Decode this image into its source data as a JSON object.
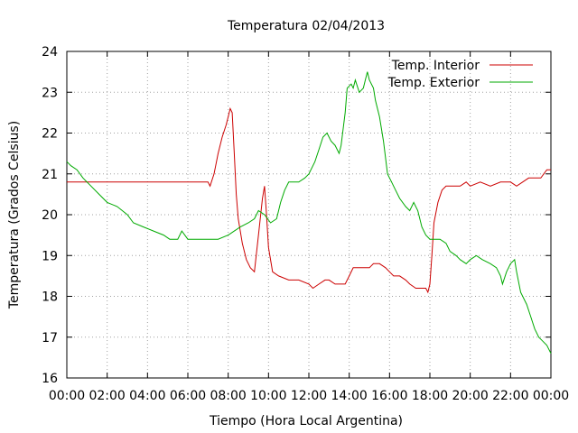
{
  "chart_data": {
    "type": "line",
    "title": "Temperatura 02/04/2013",
    "xlabel": "Tiempo (Hora Local Argentina)",
    "ylabel": "Temperatura (Grados Celsius)",
    "xlim": [
      0,
      24
    ],
    "ylim": [
      16,
      24
    ],
    "x_ticks": [
      "00:00",
      "02:00",
      "04:00",
      "06:00",
      "08:00",
      "10:00",
      "12:00",
      "14:00",
      "16:00",
      "18:00",
      "20:00",
      "22:00",
      "00:00"
    ],
    "y_ticks": [
      "16",
      "17",
      "18",
      "19",
      "20",
      "21",
      "22",
      "23",
      "24"
    ],
    "grid": true,
    "legend_position": "top-right",
    "series": [
      {
        "name": "Temp. Interior",
        "color": "#cc0000",
        "points": [
          [
            0,
            20.8
          ],
          [
            7.0,
            20.8
          ],
          [
            7.1,
            20.7
          ],
          [
            7.3,
            21.0
          ],
          [
            7.5,
            21.5
          ],
          [
            7.7,
            21.9
          ],
          [
            7.9,
            22.2
          ],
          [
            8.0,
            22.4
          ],
          [
            8.1,
            22.6
          ],
          [
            8.2,
            22.5
          ],
          [
            8.3,
            21.5
          ],
          [
            8.4,
            20.5
          ],
          [
            8.5,
            19.9
          ],
          [
            8.7,
            19.3
          ],
          [
            8.9,
            18.9
          ],
          [
            9.1,
            18.7
          ],
          [
            9.3,
            18.6
          ],
          [
            9.5,
            19.5
          ],
          [
            9.7,
            20.4
          ],
          [
            9.8,
            20.7
          ],
          [
            9.9,
            20.0
          ],
          [
            10.0,
            19.2
          ],
          [
            10.2,
            18.6
          ],
          [
            10.5,
            18.5
          ],
          [
            11.0,
            18.4
          ],
          [
            11.5,
            18.4
          ],
          [
            12.0,
            18.3
          ],
          [
            12.2,
            18.2
          ],
          [
            12.5,
            18.3
          ],
          [
            12.8,
            18.4
          ],
          [
            13.0,
            18.4
          ],
          [
            13.3,
            18.3
          ],
          [
            13.8,
            18.3
          ],
          [
            14.0,
            18.5
          ],
          [
            14.2,
            18.7
          ],
          [
            14.5,
            18.7
          ],
          [
            15.0,
            18.7
          ],
          [
            15.2,
            18.8
          ],
          [
            15.5,
            18.8
          ],
          [
            15.8,
            18.7
          ],
          [
            16.0,
            18.6
          ],
          [
            16.2,
            18.5
          ],
          [
            16.5,
            18.5
          ],
          [
            16.8,
            18.4
          ],
          [
            17.0,
            18.3
          ],
          [
            17.3,
            18.2
          ],
          [
            17.8,
            18.2
          ],
          [
            17.9,
            18.1
          ],
          [
            18.0,
            18.3
          ],
          [
            18.1,
            19.0
          ],
          [
            18.2,
            19.8
          ],
          [
            18.4,
            20.3
          ],
          [
            18.6,
            20.6
          ],
          [
            18.8,
            20.7
          ],
          [
            19.0,
            20.7
          ],
          [
            19.5,
            20.7
          ],
          [
            19.8,
            20.8
          ],
          [
            20.0,
            20.7
          ],
          [
            20.5,
            20.8
          ],
          [
            21.0,
            20.7
          ],
          [
            21.5,
            20.8
          ],
          [
            22.0,
            20.8
          ],
          [
            22.3,
            20.7
          ],
          [
            22.6,
            20.8
          ],
          [
            22.9,
            20.9
          ],
          [
            23.5,
            20.9
          ],
          [
            23.8,
            21.1
          ],
          [
            24.0,
            21.1
          ]
        ]
      },
      {
        "name": "Temp. Exterior",
        "color": "#00aa00",
        "points": [
          [
            0,
            21.3
          ],
          [
            0.2,
            21.2
          ],
          [
            0.5,
            21.1
          ],
          [
            0.8,
            20.9
          ],
          [
            1.2,
            20.7
          ],
          [
            1.6,
            20.5
          ],
          [
            2.0,
            20.3
          ],
          [
            2.5,
            20.2
          ],
          [
            3.0,
            20.0
          ],
          [
            3.3,
            19.8
          ],
          [
            3.8,
            19.7
          ],
          [
            4.3,
            19.6
          ],
          [
            4.8,
            19.5
          ],
          [
            5.1,
            19.4
          ],
          [
            5.5,
            19.4
          ],
          [
            5.7,
            19.6
          ],
          [
            6.0,
            19.4
          ],
          [
            6.5,
            19.4
          ],
          [
            7.0,
            19.4
          ],
          [
            7.5,
            19.4
          ],
          [
            8.0,
            19.5
          ],
          [
            8.3,
            19.6
          ],
          [
            8.6,
            19.7
          ],
          [
            9.0,
            19.8
          ],
          [
            9.3,
            19.9
          ],
          [
            9.5,
            20.1
          ],
          [
            9.8,
            20.0
          ],
          [
            10.1,
            19.8
          ],
          [
            10.4,
            19.9
          ],
          [
            10.6,
            20.3
          ],
          [
            10.8,
            20.6
          ],
          [
            11.0,
            20.8
          ],
          [
            11.5,
            20.8
          ],
          [
            11.8,
            20.9
          ],
          [
            12.0,
            21.0
          ],
          [
            12.3,
            21.3
          ],
          [
            12.5,
            21.6
          ],
          [
            12.7,
            21.9
          ],
          [
            12.9,
            22.0
          ],
          [
            13.1,
            21.8
          ],
          [
            13.3,
            21.7
          ],
          [
            13.5,
            21.5
          ],
          [
            13.6,
            21.7
          ],
          [
            13.8,
            22.5
          ],
          [
            13.9,
            23.1
          ],
          [
            14.1,
            23.2
          ],
          [
            14.2,
            23.1
          ],
          [
            14.3,
            23.3
          ],
          [
            14.5,
            23.0
          ],
          [
            14.7,
            23.1
          ],
          [
            14.8,
            23.3
          ],
          [
            14.9,
            23.5
          ],
          [
            15.0,
            23.3
          ],
          [
            15.2,
            23.1
          ],
          [
            15.3,
            22.8
          ],
          [
            15.5,
            22.4
          ],
          [
            15.7,
            21.8
          ],
          [
            15.9,
            21.0
          ],
          [
            16.1,
            20.8
          ],
          [
            16.3,
            20.6
          ],
          [
            16.5,
            20.4
          ],
          [
            16.8,
            20.2
          ],
          [
            17.0,
            20.1
          ],
          [
            17.2,
            20.3
          ],
          [
            17.4,
            20.1
          ],
          [
            17.6,
            19.7
          ],
          [
            17.8,
            19.5
          ],
          [
            18.0,
            19.4
          ],
          [
            18.5,
            19.4
          ],
          [
            18.8,
            19.3
          ],
          [
            19.0,
            19.1
          ],
          [
            19.3,
            19.0
          ],
          [
            19.5,
            18.9
          ],
          [
            19.8,
            18.8
          ],
          [
            20.0,
            18.9
          ],
          [
            20.3,
            19.0
          ],
          [
            20.6,
            18.9
          ],
          [
            21.0,
            18.8
          ],
          [
            21.3,
            18.7
          ],
          [
            21.5,
            18.5
          ],
          [
            21.6,
            18.3
          ],
          [
            21.8,
            18.6
          ],
          [
            22.0,
            18.8
          ],
          [
            22.2,
            18.9
          ],
          [
            22.3,
            18.6
          ],
          [
            22.5,
            18.1
          ],
          [
            22.8,
            17.8
          ],
          [
            23.0,
            17.5
          ],
          [
            23.2,
            17.2
          ],
          [
            23.4,
            17.0
          ],
          [
            23.6,
            16.9
          ],
          [
            23.8,
            16.8
          ],
          [
            24.0,
            16.6
          ]
        ]
      }
    ]
  }
}
